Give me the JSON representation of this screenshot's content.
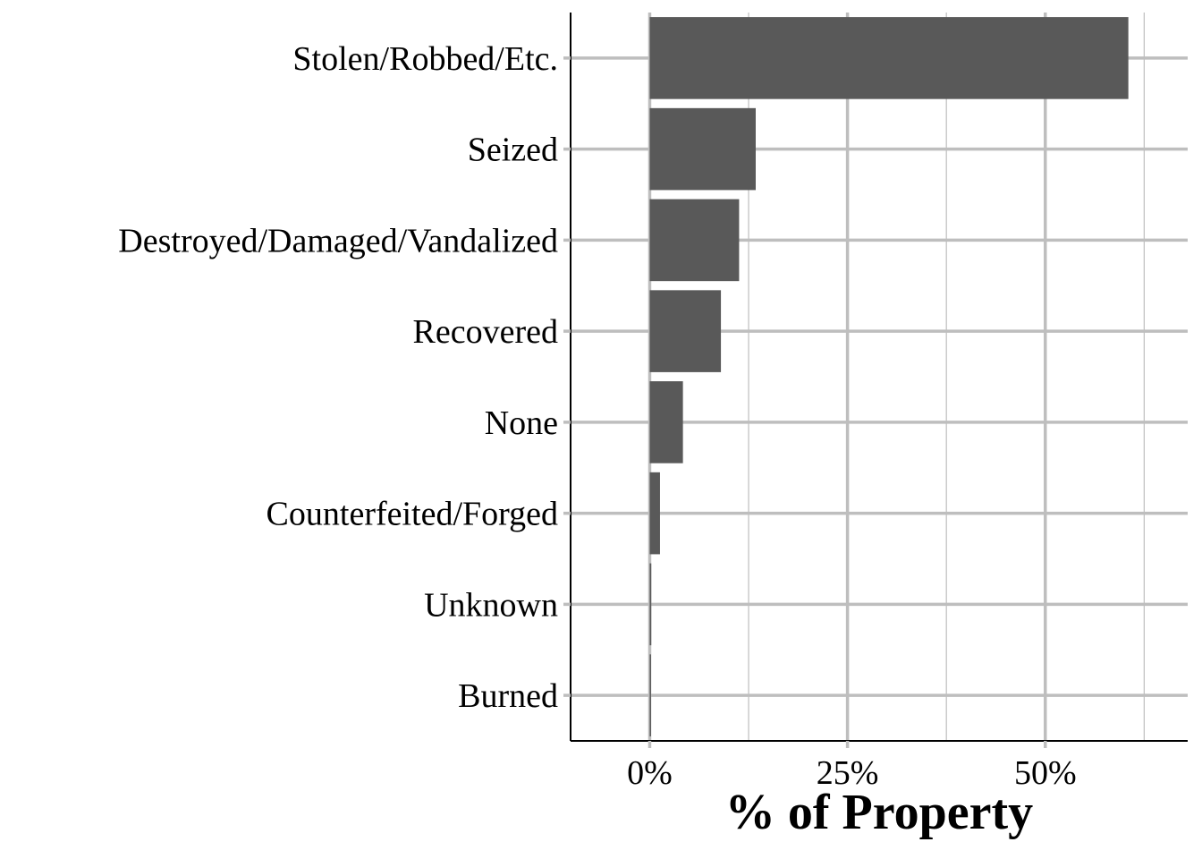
{
  "chart_data": {
    "type": "bar",
    "orientation": "horizontal",
    "categories": [
      "Stolen/Robbed/Etc.",
      "Seized",
      "Destroyed/Damaged/Vandalized",
      "Recovered",
      "None",
      "Counterfeited/Forged",
      "Unknown",
      "Burned"
    ],
    "values": [
      60.5,
      13.4,
      11.3,
      9.0,
      4.2,
      1.3,
      0.2,
      0.1
    ],
    "xlim": [
      -10,
      68
    ],
    "xticks": [
      0,
      25,
      50
    ],
    "xtick_labels": [
      "0%",
      "25%",
      "50%"
    ],
    "xlabel": "% of Property",
    "ylabel": "",
    "title": "",
    "grid": true,
    "colors": {
      "bar": "#595959",
      "grid": "#bebebe",
      "axis": "#000000",
      "background": "#ffffff"
    }
  }
}
